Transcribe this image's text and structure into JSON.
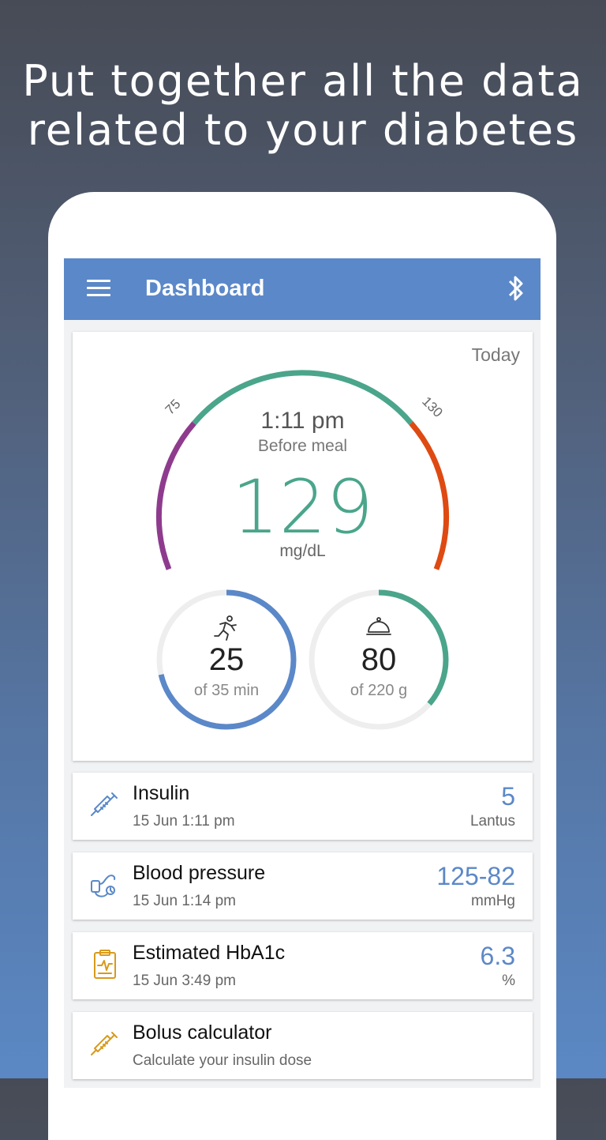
{
  "promo": {
    "headline": "Put together all the data\nrelated to your diabetes"
  },
  "appbar": {
    "title": "Dashboard",
    "menu_icon": "hamburger-menu-icon",
    "right_icon": "bluetooth-icon"
  },
  "gauge": {
    "period": "Today",
    "low_threshold": "75",
    "high_threshold": "130",
    "time": "1:11 pm",
    "context": "Before meal",
    "value": "129",
    "unit": "mg/dL",
    "colors": {
      "low": "#8e3b8e",
      "in_range": "#4aa58b",
      "high": "#de4a12"
    }
  },
  "activity": {
    "icon": "running-person-icon",
    "value": "25",
    "goal_text": "of 35 min",
    "progress": 0.714,
    "color": "#5b88c8"
  },
  "carbs": {
    "icon": "food-cloche-icon",
    "value": "80",
    "goal_text": "of 220 g",
    "progress": 0.364,
    "color": "#4aa58b"
  },
  "entries": [
    {
      "title": "Insulin",
      "date": "15 Jun 1:11 pm",
      "value": "5",
      "unit": "Lantus",
      "icon": "syringe-icon"
    },
    {
      "title": "Blood pressure",
      "date": "15 Jun 1:14 pm",
      "value": "125-82",
      "unit": "mmHg",
      "icon": "blood-pressure-cuff-icon"
    },
    {
      "title": "Estimated HbA1c",
      "date": "15 Jun 3:49 pm",
      "value": "6.3",
      "unit": "%",
      "icon": "clipboard-chart-icon"
    },
    {
      "title": "Bolus calculator",
      "date": "Calculate your insulin dose",
      "icon": "syringe-calculator-icon"
    }
  ]
}
